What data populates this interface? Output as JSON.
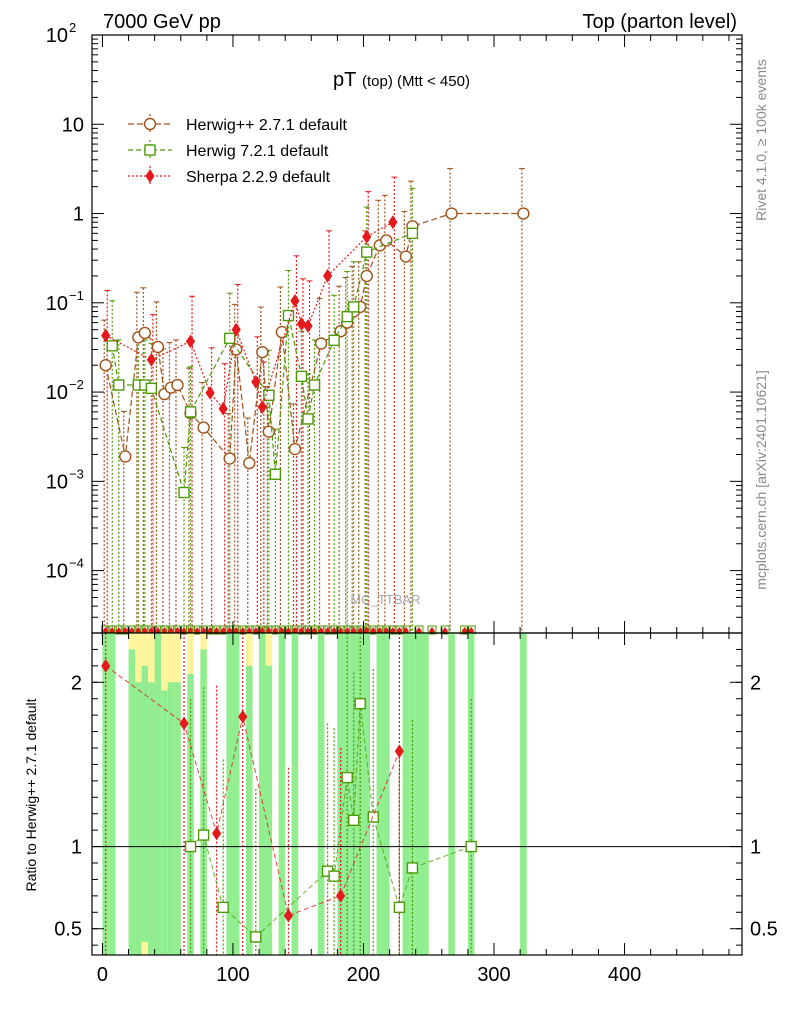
{
  "header": {
    "left": "7000 GeV pp",
    "right": "Top (parton level)"
  },
  "side_labels": {
    "rivet": "Rivet 4.1.0, ≥ 100k events",
    "mcplots": "mcplots.cern.ch [arXiv:2401.10621]"
  },
  "chart_data": [
    {
      "type": "scatter",
      "panel": "main",
      "title_main": "pT",
      "title_sub": "(top) (Mtt < 450)",
      "watermark": "MC_TTBAR",
      "y_scale": "log",
      "ylim": [
        2e-05,
        100
      ],
      "xlim": [
        -8,
        490
      ],
      "y_ticks": [
        {
          "value": 0.0001,
          "label": "10",
          "exp": "−4"
        },
        {
          "value": 0.001,
          "label": "10",
          "exp": "−3"
        },
        {
          "value": 0.01,
          "label": "10",
          "exp": "−2"
        },
        {
          "value": 0.1,
          "label": "10",
          "exp": "−1"
        },
        {
          "value": 1,
          "label": "1",
          "exp": ""
        },
        {
          "value": 10,
          "label": "10",
          "exp": ""
        },
        {
          "value": 100,
          "label": "10",
          "exp": "2"
        }
      ],
      "legend_position": "top-left",
      "series": [
        {
          "name": "Herwig++ 2.7.1 default",
          "color": "#a0521a",
          "marker": "circle",
          "dash": "6,3",
          "points": [
            [
              2.5,
              0.02
            ],
            [
              17.5,
              0.0019
            ],
            [
              27.5,
              0.041
            ],
            [
              32.5,
              0.046
            ],
            [
              42.5,
              0.032
            ],
            [
              47.5,
              0.0095
            ],
            [
              52.5,
              0.0112
            ],
            [
              57.5,
              0.012
            ],
            [
              67.5,
              0.0058
            ],
            [
              77.5,
              0.004
            ],
            [
              97.5,
              0.0018
            ],
            [
              102.5,
              0.03
            ],
            [
              112.5,
              0.0016
            ],
            [
              122.5,
              0.028
            ],
            [
              127.5,
              0.0036
            ],
            [
              137.5,
              0.047
            ],
            [
              147.5,
              0.0023
            ],
            [
              167.5,
              0.035
            ],
            [
              182.5,
              0.048
            ],
            [
              187.5,
              0.06
            ],
            [
              192.5,
              0.08
            ],
            [
              197.5,
              0.09
            ],
            [
              202.5,
              0.2
            ],
            [
              212.5,
              0.44
            ],
            [
              217.5,
              0.5
            ],
            [
              232.5,
              0.33
            ],
            [
              237.5,
              0.72
            ],
            [
              267.5,
              1.0
            ],
            [
              322.5,
              1.0
            ]
          ]
        },
        {
          "name": "Herwig 7.2.1 default",
          "color": "#4e9a06",
          "marker": "square",
          "dash": "5,3",
          "points": [
            [
              7.5,
              0.033
            ],
            [
              12.5,
              0.012
            ],
            [
              27.5,
              0.012
            ],
            [
              32.5,
              0.012
            ],
            [
              37.5,
              0.011
            ],
            [
              62.5,
              0.00075
            ],
            [
              67.5,
              0.006
            ],
            [
              97.5,
              0.04
            ],
            [
              127.5,
              0.0092
            ],
            [
              132.5,
              0.0012
            ],
            [
              142.5,
              0.072
            ],
            [
              152.5,
              0.015
            ],
            [
              157.5,
              0.005
            ],
            [
              162.5,
              0.012
            ],
            [
              177.5,
              0.038
            ],
            [
              187.5,
              0.07
            ],
            [
              192.5,
              0.09
            ],
            [
              202.5,
              0.37
            ],
            [
              237.5,
              0.6
            ]
          ]
        },
        {
          "name": "Sherpa 2.2.9 default",
          "color": "#e41a1c",
          "marker": "diamond",
          "dash": "2,2",
          "points": [
            [
              2.5,
              0.043
            ],
            [
              37.5,
              0.023
            ],
            [
              67.5,
              0.037
            ],
            [
              82.5,
              0.0098
            ],
            [
              92.5,
              0.0065
            ],
            [
              102.5,
              0.05
            ],
            [
              117.5,
              0.013
            ],
            [
              122.5,
              0.0068
            ],
            [
              147.5,
              0.105
            ],
            [
              152.5,
              0.058
            ],
            [
              157.5,
              0.055
            ],
            [
              172.5,
              0.2
            ],
            [
              202.5,
              0.55
            ],
            [
              222.5,
              0.8
            ]
          ]
        }
      ],
      "zero_markers_x": [
        2.5,
        7.5,
        12.5,
        17.5,
        22.5,
        27.5,
        32.5,
        37.5,
        42.5,
        47.5,
        52.5,
        57.5,
        62.5,
        67.5,
        72.5,
        77.5,
        82.5,
        87.5,
        92.5,
        97.5,
        102.5,
        107.5,
        112.5,
        117.5,
        122.5,
        127.5,
        132.5,
        137.5,
        142.5,
        147.5,
        152.5,
        157.5,
        162.5,
        167.5,
        172.5,
        177.5,
        182.5,
        187.5,
        192.5,
        197.5,
        202.5,
        207.5,
        212.5,
        217.5,
        222.5,
        227.5,
        232.5,
        242.5,
        252.5,
        262.5,
        277.5,
        282.5
      ]
    },
    {
      "type": "scatter",
      "panel": "ratio",
      "ylabel": "Ratio to Herwig++ 2.7.1 default",
      "xlim": [
        -8,
        490
      ],
      "ylim": [
        0.34,
        2.3
      ],
      "y_ticks": [
        0.5,
        1,
        2
      ],
      "x_ticks": [
        0,
        100,
        200,
        300,
        400
      ],
      "reference_line": 1,
      "bands": [
        {
          "x": [
            0,
            5
          ],
          "yellow": [
            0.34,
            2.3
          ],
          "green": [
            0.34,
            2.3
          ]
        },
        {
          "x": [
            5,
            10
          ],
          "yellow": [
            0.34,
            2.3
          ],
          "green": [
            0.34,
            2.3
          ]
        },
        {
          "x": [
            20,
            25
          ],
          "yellow": [
            0.34,
            2.3
          ],
          "green": [
            0.34,
            2.2
          ]
        },
        {
          "x": [
            25,
            30
          ],
          "yellow": [
            0.34,
            2.3
          ],
          "green": [
            0.34,
            2.0
          ]
        },
        {
          "x": [
            30,
            35
          ],
          "yellow": [
            0.34,
            2.3
          ],
          "green": [
            0.42,
            2.1
          ]
        },
        {
          "x": [
            35,
            40
          ],
          "yellow": [
            0.34,
            2.3
          ],
          "green": [
            0.34,
            2.0
          ]
        },
        {
          "x": [
            40,
            45
          ],
          "yellow": [
            0.34,
            2.3
          ],
          "green": [
            0.34,
            2.3
          ]
        },
        {
          "x": [
            45,
            50
          ],
          "yellow": [
            0.34,
            2.3
          ],
          "green": [
            0.34,
            1.95
          ]
        },
        {
          "x": [
            50,
            55
          ],
          "yellow": [
            0.34,
            2.3
          ],
          "green": [
            0.34,
            2.0
          ]
        },
        {
          "x": [
            55,
            60
          ],
          "yellow": [
            0.34,
            2.3
          ],
          "green": [
            0.34,
            2.0
          ]
        },
        {
          "x": [
            65,
            70
          ],
          "yellow": [
            0.34,
            2.3
          ],
          "green": [
            0.34,
            2.05
          ]
        },
        {
          "x": [
            75,
            80
          ],
          "yellow": [
            0.34,
            2.3
          ],
          "green": [
            0.34,
            2.2
          ]
        },
        {
          "x": [
            95,
            100
          ],
          "yellow": [
            0.34,
            2.3
          ],
          "green": [
            0.34,
            2.3
          ]
        },
        {
          "x": [
            100,
            105
          ],
          "yellow": [
            0.34,
            2.3
          ],
          "green": [
            0.34,
            2.3
          ]
        },
        {
          "x": [
            110,
            115
          ],
          "yellow": [
            0.34,
            2.3
          ],
          "green": [
            0.34,
            2.1
          ]
        },
        {
          "x": [
            120,
            125
          ],
          "yellow": [
            0.34,
            2.3
          ],
          "green": [
            0.34,
            2.3
          ]
        },
        {
          "x": [
            125,
            130
          ],
          "yellow": [
            0.34,
            2.3
          ],
          "green": [
            0.34,
            2.1
          ]
        },
        {
          "x": [
            135,
            140
          ],
          "yellow": [
            0.34,
            2.3
          ],
          "green": [
            0.34,
            2.3
          ]
        },
        {
          "x": [
            145,
            150
          ],
          "yellow": [
            0.34,
            2.3
          ],
          "green": [
            0.34,
            2.3
          ]
        },
        {
          "x": [
            165,
            170
          ],
          "yellow": [
            0.34,
            2.3
          ],
          "green": [
            0.34,
            2.3
          ]
        },
        {
          "x": [
            180,
            185
          ],
          "yellow": [
            0.34,
            2.3
          ],
          "green": [
            0.34,
            2.3
          ]
        },
        {
          "x": [
            185,
            190
          ],
          "yellow": [
            0.34,
            2.3
          ],
          "green": [
            0.34,
            2.3
          ]
        },
        {
          "x": [
            190,
            195
          ],
          "yellow": [
            0.34,
            2.3
          ],
          "green": [
            0.34,
            2.3
          ]
        },
        {
          "x": [
            195,
            200
          ],
          "yellow": [
            0.34,
            2.3
          ],
          "green": [
            0.34,
            2.3
          ]
        },
        {
          "x": [
            200,
            205
          ],
          "yellow": [
            0.34,
            2.3
          ],
          "green": [
            0.34,
            2.3
          ]
        },
        {
          "x": [
            210,
            215
          ],
          "yellow": [
            0.34,
            2.3
          ],
          "green": [
            0.34,
            2.3
          ]
        },
        {
          "x": [
            215,
            220
          ],
          "yellow": [
            0.34,
            2.3
          ],
          "green": [
            0.34,
            2.3
          ]
        },
        {
          "x": [
            230,
            235
          ],
          "yellow": [
            0.34,
            2.3
          ],
          "green": [
            0.34,
            2.3
          ]
        },
        {
          "x": [
            235,
            240
          ],
          "yellow": [
            0.34,
            2.3
          ],
          "green": [
            0.34,
            2.3
          ]
        },
        {
          "x": [
            240,
            250
          ],
          "yellow": [
            0.34,
            2.3
          ],
          "green": [
            0.34,
            2.3
          ]
        },
        {
          "x": [
            265,
            270
          ],
          "yellow": [
            0.34,
            2.3
          ],
          "green": [
            0.34,
            2.3
          ]
        },
        {
          "x": [
            280,
            285
          ],
          "yellow": [
            0.34,
            2.3
          ],
          "green": [
            0.34,
            2.3
          ]
        },
        {
          "x": [
            320,
            325
          ],
          "yellow": [
            0.34,
            2.3
          ],
          "green": [
            0.34,
            2.3
          ]
        }
      ],
      "series": [
        {
          "name": "Herwig 7.2.1 ratio",
          "color": "#4e9a06",
          "marker": "square",
          "points": [
            [
              67.5,
              1.0
            ],
            [
              77.5,
              1.07
            ],
            [
              92.5,
              0.63
            ],
            [
              117.5,
              0.45
            ],
            [
              187.5,
              1.42
            ],
            [
              192.5,
              1.16
            ],
            [
              197.5,
              1.87
            ],
            [
              207.5,
              1.18
            ],
            [
              172.5,
              0.85
            ],
            [
              177.5,
              0.82
            ],
            [
              227.5,
              0.63
            ],
            [
              237.5,
              0.87
            ],
            [
              282.5,
              1.0
            ]
          ]
        },
        {
          "name": "Sherpa 2.2.9 ratio",
          "color": "#e41a1c",
          "marker": "diamond",
          "points": [
            [
              2.5,
              2.1
            ],
            [
              62.5,
              1.75
            ],
            [
              87.5,
              1.08
            ],
            [
              107.5,
              1.79
            ],
            [
              142.5,
              0.58
            ],
            [
              182.5,
              0.7
            ],
            [
              227.5,
              1.58
            ]
          ]
        }
      ]
    }
  ]
}
